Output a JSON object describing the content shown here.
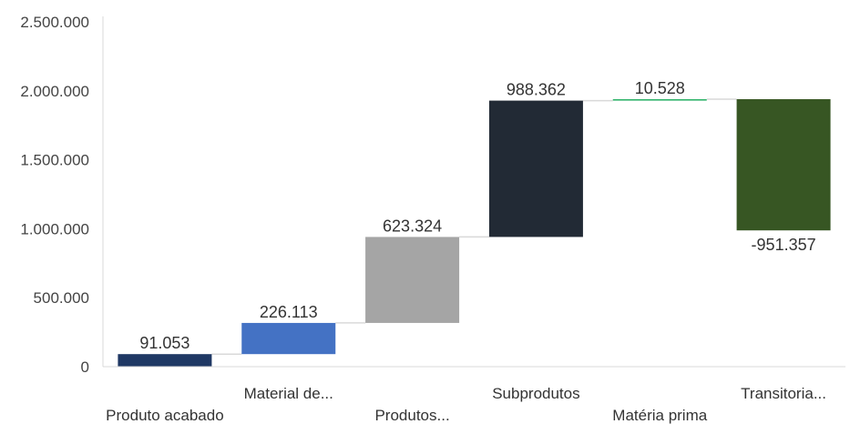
{
  "chart_data": {
    "type": "bar",
    "subtype": "waterfall",
    "title": "",
    "xlabel": "",
    "ylabel": "",
    "ylim": [
      0,
      2500000
    ],
    "y_ticks": [
      0,
      500000,
      1000000,
      1500000,
      2000000,
      2500000
    ],
    "y_tick_labels": [
      "0",
      "500.000",
      "1.000.000",
      "1.500.000",
      "2.000.000",
      "2.500.000"
    ],
    "grid": false,
    "legend": "none",
    "categories": [
      "Produto acabado",
      "Material de...",
      "Produtos...",
      "Subprodutos",
      "Matéria prima",
      "Transitoria..."
    ],
    "values": [
      91053,
      226113,
      623324,
      988362,
      10528,
      -951357
    ],
    "value_labels": [
      "91.053",
      "226.113",
      "623.324",
      "988.362",
      "10.528",
      "-951.357"
    ],
    "colors": [
      "#1f3864",
      "#4472c4",
      "#a5a5a5",
      "#222a35",
      "#2fb36a",
      "#375623"
    ],
    "connector_color": "#d9d9d9",
    "axis_color": "#d9d9d9"
  }
}
